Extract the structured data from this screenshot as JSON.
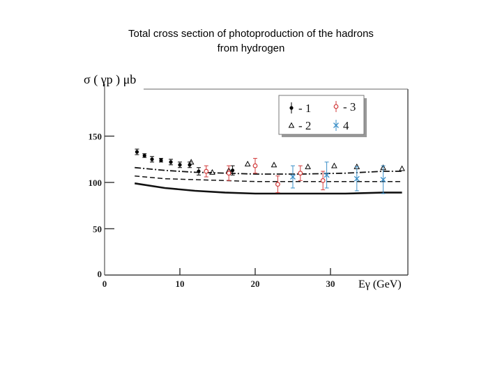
{
  "page": {
    "title_line1": "Total cross section of photoproduction of the hadrons",
    "title_line2": "from hydrogen"
  },
  "chart_data": {
    "type": "scatter",
    "ylabel": "σ ( γp ) μb",
    "xlabel": "Eγ (GeV)",
    "xlim": [
      0,
      40
    ],
    "ylim": [
      0,
      200
    ],
    "x_ticks": [
      "0",
      "10",
      "20",
      "30"
    ],
    "y_ticks": [
      "0",
      "50",
      "100",
      "150"
    ],
    "grid": false,
    "legend": {
      "placement": "top-right",
      "entries": [
        {
          "marker": "filled-dot",
          "label": "- 1"
        },
        {
          "marker": "open-triangle",
          "label": "- 2"
        },
        {
          "marker": "open-circle-red",
          "label": "- 3"
        },
        {
          "marker": "cross-blue",
          "label": "4"
        }
      ]
    },
    "series": [
      {
        "name": "1",
        "marker": "filled-dot",
        "color": "#000000",
        "points": [
          {
            "x": 4.3,
            "y": 133,
            "err": 3
          },
          {
            "x": 5.3,
            "y": 129,
            "err": 2
          },
          {
            "x": 6.3,
            "y": 125,
            "err": 3
          },
          {
            "x": 7.5,
            "y": 124,
            "err": 2
          },
          {
            "x": 8.8,
            "y": 122,
            "err": 3
          },
          {
            "x": 10.0,
            "y": 119,
            "err": 3
          },
          {
            "x": 11.3,
            "y": 119,
            "err": 3
          },
          {
            "x": 12.5,
            "y": 112,
            "err": 4
          },
          {
            "x": 17.0,
            "y": 113,
            "err": 5
          }
        ]
      },
      {
        "name": "2",
        "marker": "open-triangle",
        "color": "#000000",
        "points": [
          {
            "x": 11.5,
            "y": 122
          },
          {
            "x": 14.3,
            "y": 111
          },
          {
            "x": 16.5,
            "y": 113
          },
          {
            "x": 19.0,
            "y": 120
          },
          {
            "x": 22.5,
            "y": 119
          },
          {
            "x": 27.0,
            "y": 117
          },
          {
            "x": 30.5,
            "y": 118
          },
          {
            "x": 33.5,
            "y": 117
          },
          {
            "x": 37.0,
            "y": 116
          },
          {
            "x": 39.5,
            "y": 115
          }
        ]
      },
      {
        "name": "3",
        "marker": "open-circle",
        "color": "#d23b3b",
        "points": [
          {
            "x": 13.5,
            "y": 112,
            "err": 6
          },
          {
            "x": 16.5,
            "y": 110,
            "err": 8
          },
          {
            "x": 20.0,
            "y": 118,
            "err": 8
          },
          {
            "x": 23.0,
            "y": 98,
            "err": 9
          },
          {
            "x": 26.0,
            "y": 110,
            "err": 8
          },
          {
            "x": 29.0,
            "y": 102,
            "err": 10
          }
        ]
      },
      {
        "name": "4",
        "marker": "cross",
        "color": "#3a8fc8",
        "points": [
          {
            "x": 25.0,
            "y": 106,
            "err": 12
          },
          {
            "x": 29.5,
            "y": 108,
            "err": 14
          },
          {
            "x": 33.5,
            "y": 104,
            "err": 13
          },
          {
            "x": 37.0,
            "y": 103,
            "err": 15
          }
        ]
      }
    ],
    "curves": [
      {
        "style": "dash-dot",
        "points": [
          [
            4,
            116
          ],
          [
            8,
            113
          ],
          [
            12,
            111
          ],
          [
            16,
            110
          ],
          [
            20,
            109
          ],
          [
            26,
            109
          ],
          [
            32,
            110
          ],
          [
            37,
            112
          ],
          [
            39.5,
            112
          ]
        ]
      },
      {
        "style": "dashed",
        "points": [
          [
            4,
            107
          ],
          [
            8,
            104
          ],
          [
            12,
            103
          ],
          [
            16,
            102
          ],
          [
            20,
            101
          ],
          [
            26,
            101
          ],
          [
            32,
            101
          ],
          [
            37,
            101
          ],
          [
            39.5,
            101
          ]
        ]
      },
      {
        "style": "solid",
        "points": [
          [
            4,
            99
          ],
          [
            8,
            94
          ],
          [
            12,
            91
          ],
          [
            16,
            89
          ],
          [
            20,
            88
          ],
          [
            26,
            88
          ],
          [
            32,
            88
          ],
          [
            37,
            89
          ],
          [
            39.5,
            89
          ]
        ]
      }
    ]
  }
}
